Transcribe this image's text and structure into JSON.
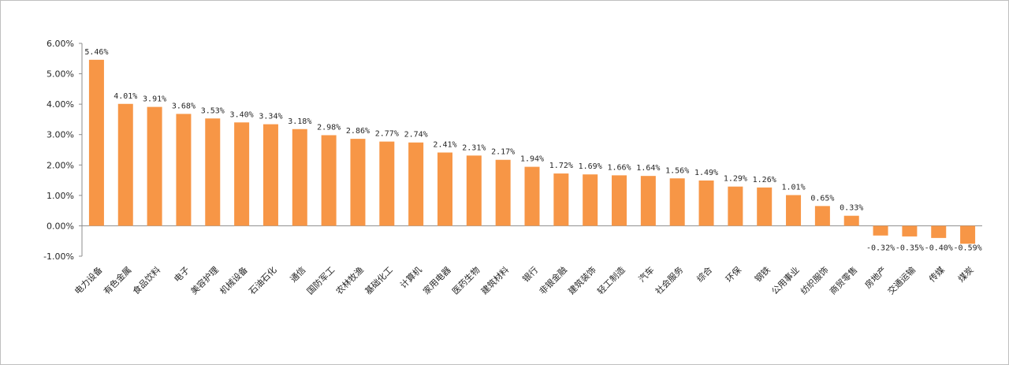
{
  "chart_data": {
    "type": "bar",
    "categories": [
      "电力设备",
      "有色金属",
      "食品饮料",
      "电子",
      "美容护理",
      "机械设备",
      "石油石化",
      "通信",
      "国防军工",
      "农林牧渔",
      "基础化工",
      "计算机",
      "家用电器",
      "医药生物",
      "建筑材料",
      "银行",
      "非银金融",
      "建筑装饰",
      "轻工制造",
      "汽车",
      "社会服务",
      "综合",
      "环保",
      "钢铁",
      "公用事业",
      "纺织服饰",
      "商贸零售",
      "房地产",
      "交通运输",
      "传媒",
      "煤炭"
    ],
    "values": [
      5.46,
      4.01,
      3.91,
      3.68,
      3.53,
      3.4,
      3.34,
      3.18,
      2.98,
      2.86,
      2.77,
      2.74,
      2.41,
      2.31,
      2.17,
      1.94,
      1.72,
      1.69,
      1.66,
      1.64,
      1.56,
      1.49,
      1.29,
      1.26,
      1.01,
      0.65,
      0.33,
      -0.32,
      -0.35,
      -0.4,
      -0.59
    ],
    "value_labels": [
      "5.46%",
      "4.01%",
      "3.91%",
      "3.68%",
      "3.53%",
      "3.40%",
      "3.34%",
      "3.18%",
      "2.98%",
      "2.86%",
      "2.77%",
      "2.74%",
      "2.41%",
      "2.31%",
      "2.17%",
      "1.94%",
      "1.72%",
      "1.69%",
      "1.66%",
      "1.64%",
      "1.56%",
      "1.49%",
      "1.29%",
      "1.26%",
      "1.01%",
      "0.65%",
      "0.33%",
      "-0.32%",
      "-0.35%",
      "-0.40%",
      "-0.59%"
    ],
    "yticks": [
      "6.00%",
      "5.00%",
      "4.00%",
      "3.00%",
      "2.00%",
      "1.00%",
      "0.00%",
      "-1.00%"
    ],
    "ylim": [
      -1,
      6
    ],
    "bar_color": "#F79646",
    "grid": false,
    "title": "",
    "xlabel": "",
    "ylabel": ""
  }
}
